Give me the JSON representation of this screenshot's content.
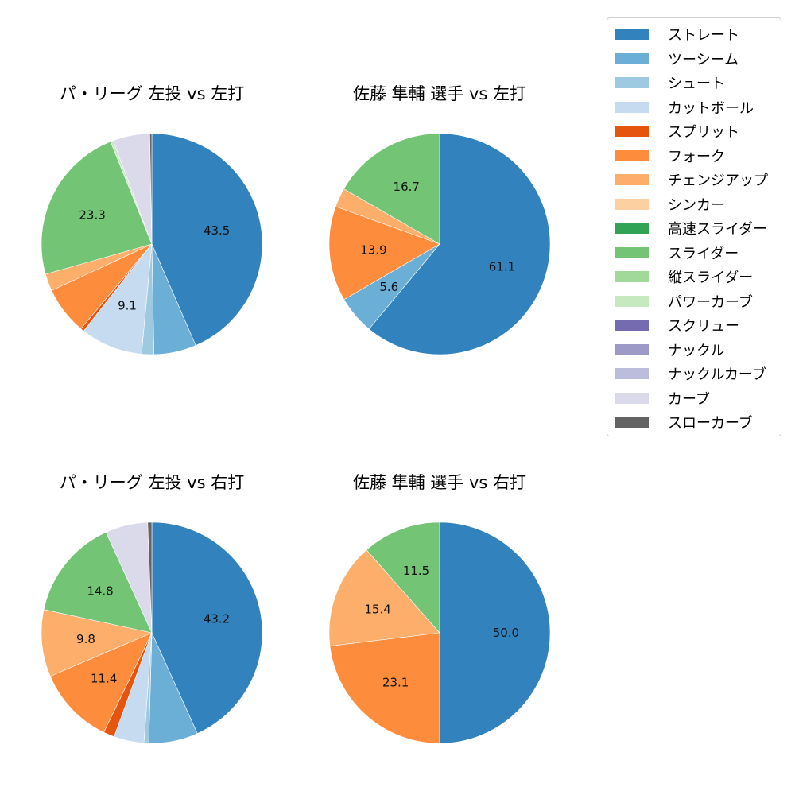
{
  "legend": {
    "items": [
      {
        "label": "ストレート",
        "color": "#3182bd"
      },
      {
        "label": "ツーシーム",
        "color": "#6baed6"
      },
      {
        "label": "シュート",
        "color": "#9ecae1"
      },
      {
        "label": "カットボール",
        "color": "#c6dbef"
      },
      {
        "label": "スプリット",
        "color": "#e6550d"
      },
      {
        "label": "フォーク",
        "color": "#fd8d3c"
      },
      {
        "label": "チェンジアップ",
        "color": "#fdae6b"
      },
      {
        "label": "シンカー",
        "color": "#fdd0a2"
      },
      {
        "label": "高速スライダー",
        "color": "#31a354"
      },
      {
        "label": "スライダー",
        "color": "#74c476"
      },
      {
        "label": "縦スライダー",
        "color": "#a1d99b"
      },
      {
        "label": "パワーカーブ",
        "color": "#c7e9c0"
      },
      {
        "label": "スクリュー",
        "color": "#756bb1"
      },
      {
        "label": "ナックル",
        "color": "#9e9ac8"
      },
      {
        "label": "ナックルカーブ",
        "color": "#bcbddc"
      },
      {
        "label": "カーブ",
        "color": "#dadaeb"
      },
      {
        "label": "スローカーブ",
        "color": "#636363"
      }
    ]
  },
  "chart_data": [
    {
      "type": "pie",
      "title": "パ・リーグ 左投 vs 左打",
      "categories": [
        "ストレート",
        "ツーシーム",
        "シュート",
        "カットボール",
        "スプリット",
        "フォーク",
        "チェンジアップ",
        "スライダー",
        "パワーカーブ",
        "カーブ",
        "スローカーブ"
      ],
      "values": [
        43.5,
        6.2,
        1.8,
        9.1,
        0.5,
        7.0,
        2.5,
        23.3,
        0.4,
        5.4,
        0.3
      ],
      "labels_shown": [
        "43.5",
        "",
        "",
        "9.1",
        "",
        "",
        "",
        "23.3",
        "",
        "",
        ""
      ]
    },
    {
      "type": "pie",
      "title": "佐藤 隼輔 選手 vs 左打",
      "categories": [
        "ストレート",
        "ツーシーム",
        "フォーク",
        "チェンジアップ",
        "スライダー"
      ],
      "values": [
        61.1,
        5.6,
        13.9,
        2.8,
        16.7
      ],
      "labels_shown": [
        "61.1",
        "5.6",
        "13.9",
        "",
        "16.7"
      ]
    },
    {
      "type": "pie",
      "title": "パ・リーグ 左投 vs 右打",
      "categories": [
        "ストレート",
        "ツーシーム",
        "シュート",
        "カットボール",
        "スプリット",
        "フォーク",
        "チェンジアップ",
        "スライダー",
        "カーブ",
        "スローカーブ"
      ],
      "values": [
        43.2,
        7.2,
        0.7,
        4.4,
        1.6,
        11.4,
        9.8,
        14.8,
        6.2,
        0.6
      ],
      "labels_shown": [
        "43.2",
        "",
        "",
        "",
        "",
        "11.4",
        "9.8",
        "14.8",
        "",
        ""
      ]
    },
    {
      "type": "pie",
      "title": "佐藤 隼輔 選手 vs 右打",
      "categories": [
        "ストレート",
        "フォーク",
        "チェンジアップ",
        "スライダー"
      ],
      "values": [
        50.0,
        23.1,
        15.4,
        11.5
      ],
      "labels_shown": [
        "50.0",
        "23.1",
        "15.4",
        "11.5"
      ]
    }
  ]
}
